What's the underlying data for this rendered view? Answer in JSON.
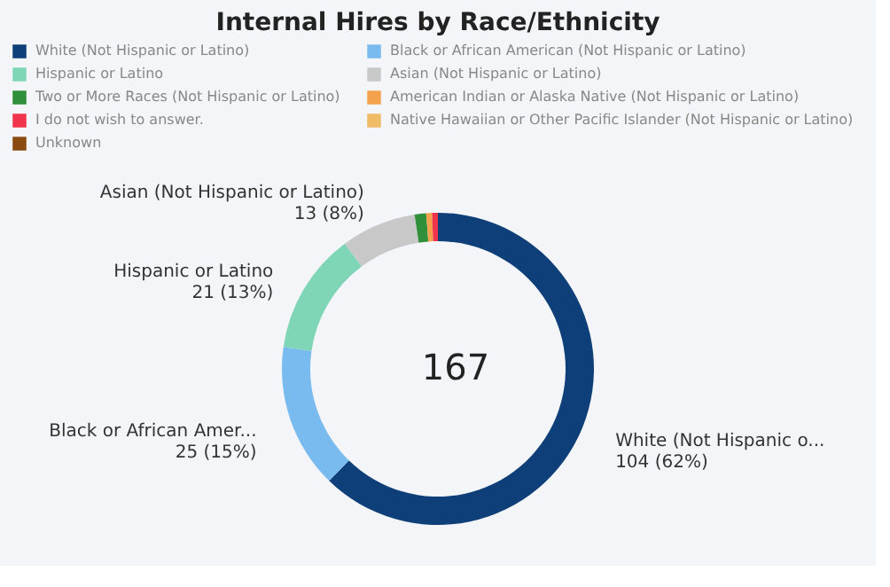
{
  "chart_data": {
    "type": "donut",
    "title": "Internal Hires by Race/Ethnicity",
    "categories": [
      "White (Not Hispanic or Latino)",
      "Black or African American (Not Hispanic or Latino)",
      "Hispanic or Latino",
      "Asian (Not Hispanic or Latino)",
      "Two or More Races (Not Hispanic or Latino)",
      "American Indian or Alaska Native (Not Hispanic or Latino)",
      "I do not wish to answer.",
      "Native Hawaiian or Other Pacific Islander (Not Hispanic or Latino)",
      "Unknown"
    ],
    "values": [
      104,
      25,
      21,
      13,
      2,
      1,
      1,
      0,
      0
    ],
    "colors": [
      "#0e3f78",
      "#79bbef",
      "#7fd6b7",
      "#c8c8c8",
      "#2f8f3b",
      "#f4a24c",
      "#f0344b",
      "#f0bb66",
      "#8a4b12"
    ],
    "value_labels": [
      "White (Not Hispanic o...\n104 (62%)",
      "Black or African Amer...\n25 (15%)",
      "Hispanic or Latino\n21 (13%)",
      "Asian (Not Hispanic or Latino)\n13 (8%)",
      null,
      null,
      null,
      null,
      null
    ],
    "annotations": [
      "167"
    ],
    "legend": "top"
  }
}
